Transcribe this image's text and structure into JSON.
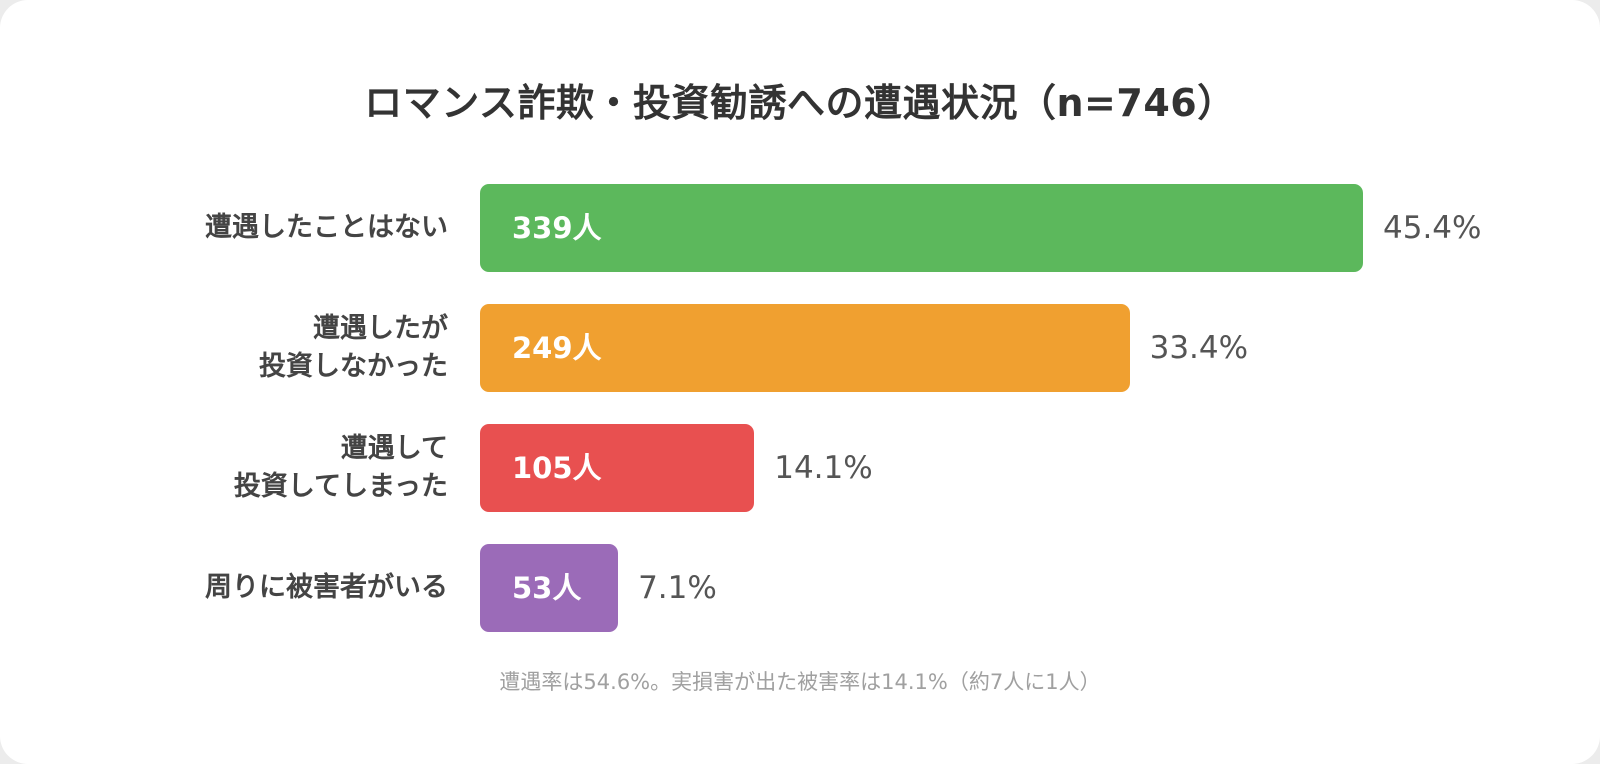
{
  "chart_data": {
    "type": "bar",
    "orientation": "horizontal",
    "title": "ロマンス詐欺・投資勧誘への遭遇状況（n=746）",
    "categories": [
      "遭遇したことはない",
      "遭遇したが\n投資しなかった",
      "遭遇して\n投資してしまった",
      "周りに被害者がいる"
    ],
    "values": [
      45.4,
      33.4,
      14.1,
      7.1
    ],
    "count_labels": [
      "339人",
      "249人",
      "105人",
      "53人"
    ],
    "percent_labels": [
      "45.4%",
      "33.4%",
      "14.1%",
      "7.1%"
    ],
    "colors": [
      "#5cb85c",
      "#f0a030",
      "#e85050",
      "#9b6bb8"
    ],
    "xlim": [
      0,
      45.4
    ],
    "grid": false,
    "legend": "none"
  },
  "footnote": "遭遇率は54.6%。実損害が出た被害率は14.1%（約7人に1人）"
}
